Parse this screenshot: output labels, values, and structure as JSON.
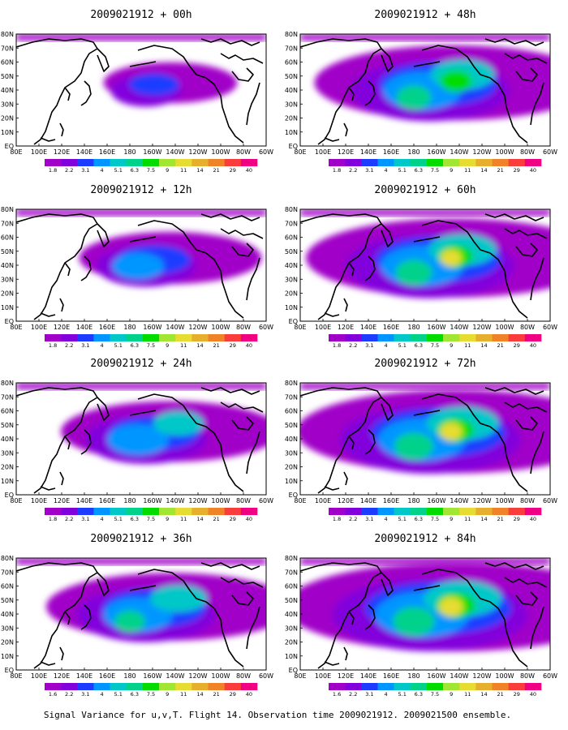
{
  "caption": "Signal Variance for u,v,T. Flight 14. Observation time 2009021912. 2009021500 ensemble.",
  "colorbar": {
    "levels": [
      "1.8",
      "2.2",
      "3.1",
      "4",
      "5.1",
      "6.3",
      "7.5",
      "9",
      "11",
      "14",
      "21",
      "29",
      "40"
    ],
    "bottom_levels": [
      "1.6",
      "2.2",
      "3.1",
      "4",
      "5.1",
      "6.3",
      "7.5",
      "9",
      "11",
      "14",
      "21",
      "29",
      "40"
    ],
    "colors": [
      "#a000c8",
      "#8200dc",
      "#1e3cff",
      "#0096ff",
      "#00c8c8",
      "#00d28c",
      "#00dc00",
      "#a0e632",
      "#e6dc32",
      "#e6af2d",
      "#f08228",
      "#fa3c3c",
      "#f00082"
    ]
  },
  "x_ticks": [
    "80E",
    "100E",
    "120E",
    "140E",
    "160E",
    "180",
    "160W",
    "140W",
    "120W",
    "100W",
    "80W",
    "60W"
  ],
  "y_ticks": [
    "80N",
    "70N",
    "60N",
    "50N",
    "40N",
    "30N",
    "20N",
    "10N",
    "EQ"
  ],
  "panels": [
    {
      "title": "2009021912 + 00h",
      "lead": "00h",
      "intensity": 0.15
    },
    {
      "title": "2009021912 + 48h",
      "lead": "48h",
      "intensity": 0.75
    },
    {
      "title": "2009021912 + 12h",
      "lead": "12h",
      "intensity": 0.35
    },
    {
      "title": "2009021912 + 60h",
      "lead": "60h",
      "intensity": 0.82
    },
    {
      "title": "2009021912 + 24h",
      "lead": "24h",
      "intensity": 0.5
    },
    {
      "title": "2009021912 + 72h",
      "lead": "72h",
      "intensity": 0.9
    },
    {
      "title": "2009021912 + 36h",
      "lead": "36h",
      "intensity": 0.62
    },
    {
      "title": "2009021912 + 84h",
      "lead": "84h",
      "intensity": 1.0
    }
  ]
}
